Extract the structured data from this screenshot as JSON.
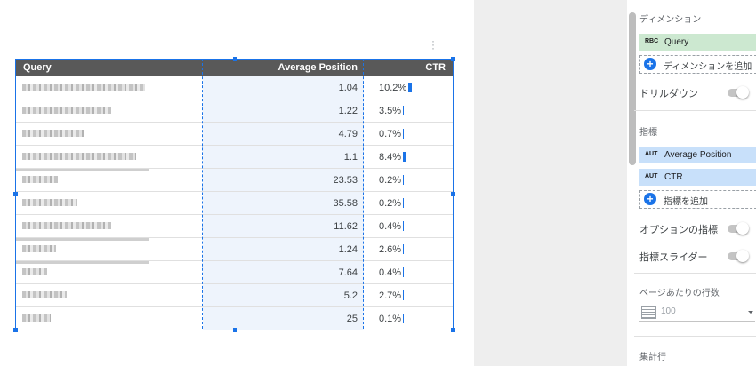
{
  "table": {
    "headers": [
      "Query",
      "Average Position",
      "CTR"
    ],
    "rows": [
      {
        "avg_position": "1.04",
        "ctr": "10.2%",
        "ctr_value": 10.2
      },
      {
        "avg_position": "1.22",
        "ctr": "3.5%",
        "ctr_value": 3.5
      },
      {
        "avg_position": "4.79",
        "ctr": "0.7%",
        "ctr_value": 0.7
      },
      {
        "avg_position": "1.1",
        "ctr": "8.4%",
        "ctr_value": 8.4
      },
      {
        "avg_position": "23.53",
        "ctr": "0.2%",
        "ctr_value": 0.2
      },
      {
        "avg_position": "35.58",
        "ctr": "0.2%",
        "ctr_value": 0.2
      },
      {
        "avg_position": "11.62",
        "ctr": "0.4%",
        "ctr_value": 0.4
      },
      {
        "avg_position": "1.24",
        "ctr": "2.6%",
        "ctr_value": 2.6
      },
      {
        "avg_position": "7.64",
        "ctr": "0.4%",
        "ctr_value": 0.4
      },
      {
        "avg_position": "5.2",
        "ctr": "2.7%",
        "ctr_value": 2.7
      },
      {
        "avg_position": "25",
        "ctr": "0.1%",
        "ctr_value": 0.1
      }
    ]
  },
  "panel": {
    "dimension_section": "ディメンション",
    "dimension_chip": {
      "tag": "RBC",
      "label": "Query"
    },
    "add_dimension": "ディメンションを追加",
    "drilldown": "ドリルダウン",
    "metric_section": "指標",
    "metric_chips": [
      {
        "tag": "AUT",
        "label": "Average Position"
      },
      {
        "tag": "AUT",
        "label": "CTR"
      }
    ],
    "add_metric": "指標を追加",
    "optional_metrics": "オプションの指標",
    "metric_slider": "指標スライダー",
    "rows_per_page_section": "ページあたりの行数",
    "rows_per_page_value": "100",
    "totals_section": "集計行"
  },
  "colors": {
    "accent": "#1a73e8",
    "header_bg": "#595959",
    "dimension_chip_bg": "#cce8d0",
    "metric_chip_bg": "#c8e0fa"
  }
}
